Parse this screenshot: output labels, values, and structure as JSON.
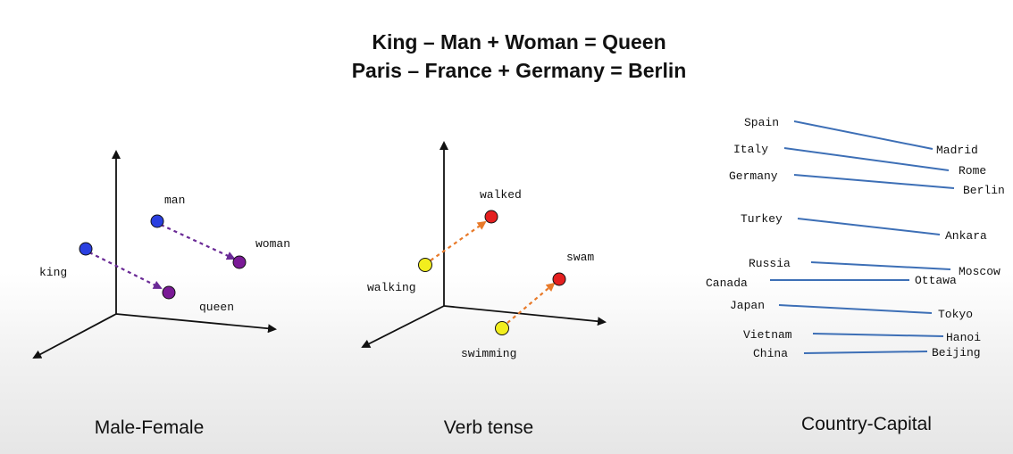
{
  "title": {
    "line1": "King – Man + Woman = Queen",
    "line2": "Paris – France + Germany = Berlin"
  },
  "panels": {
    "male_female": {
      "caption": "Male-Female",
      "points": [
        {
          "label": "king",
          "color": "#2a3fe0"
        },
        {
          "label": "queen",
          "color": "#7a1a96"
        },
        {
          "label": "man",
          "color": "#2a3fe0"
        },
        {
          "label": "woman",
          "color": "#7a1a96"
        }
      ],
      "arrow_color": "#6a2a96"
    },
    "verb_tense": {
      "caption": "Verb tense",
      "points": [
        {
          "label": "walking",
          "color": "#f2ee1e"
        },
        {
          "label": "walked",
          "color": "#e41f1f"
        },
        {
          "label": "swimming",
          "color": "#f2ee1e"
        },
        {
          "label": "swam",
          "color": "#e41f1f"
        }
      ],
      "arrow_color": "#e87a2a"
    },
    "country_capital": {
      "caption": "Country-Capital",
      "line_color": "#3d6fb6",
      "pairs": [
        {
          "country": "Spain",
          "capital": "Madrid"
        },
        {
          "country": "Italy",
          "capital": "Rome"
        },
        {
          "country": "Germany",
          "capital": "Berlin"
        },
        {
          "country": "Turkey",
          "capital": "Ankara"
        },
        {
          "country": "Russia",
          "capital": "Moscow"
        },
        {
          "country": "Canada",
          "capital": "Ottawa"
        },
        {
          "country": "Japan",
          "capital": "Tokyo"
        },
        {
          "country": "Vietnam",
          "capital": "Hanoi"
        },
        {
          "country": "China",
          "capital": "Beijing"
        }
      ]
    }
  }
}
